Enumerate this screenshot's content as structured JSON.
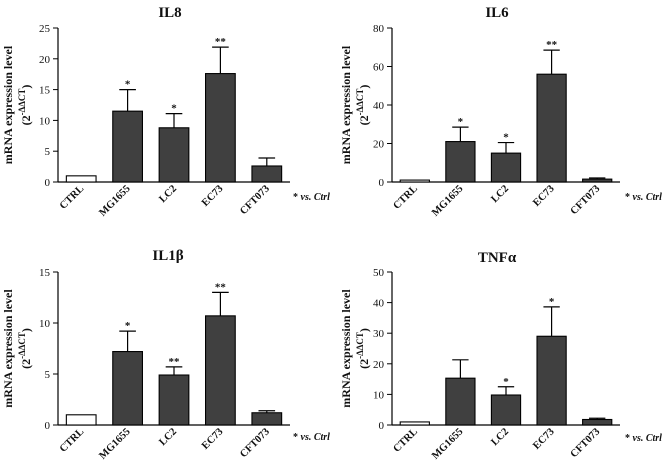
{
  "chart_data": [
    {
      "type": "bar",
      "title": "IL8",
      "categories": [
        "CTRL",
        "MG1655",
        "LC2",
        "EC73",
        "CFT073"
      ],
      "values": [
        1.0,
        11.5,
        8.8,
        17.6,
        2.6
      ],
      "errors": [
        0,
        3.5,
        2.3,
        4.3,
        1.3
      ],
      "significance": [
        "",
        "*",
        "*",
        "**",
        ""
      ],
      "ylim": [
        0,
        25
      ],
      "yticks": [
        0,
        5,
        10,
        15,
        20,
        25
      ],
      "ylabel": "mRNA expression level",
      "ylabel2": "(2",
      "ylabel_sup": "-ΔΔCT",
      "ylabel_close": ")",
      "note_star": "*",
      "note_text": "vs. Ctrl"
    },
    {
      "type": "bar",
      "title": "IL6",
      "categories": [
        "CTRL",
        "MG1655",
        "LC2",
        "EC73",
        "CFT073"
      ],
      "values": [
        1.0,
        21.0,
        15.0,
        56.0,
        1.5
      ],
      "errors": [
        0,
        7.5,
        5.5,
        12.5,
        0.6
      ],
      "significance": [
        "",
        "*",
        "*",
        "**",
        ""
      ],
      "ylim": [
        0,
        80
      ],
      "yticks": [
        0,
        20,
        40,
        60,
        80
      ],
      "ylabel": "mRNA expression level",
      "ylabel2": "(2",
      "ylabel_sup": "-ΔΔCT",
      "ylabel_close": ")",
      "note_star": "*",
      "note_text": "vs. Ctrl"
    },
    {
      "type": "bar",
      "title": "IL1β",
      "categories": [
        "CTRL",
        "MG1655",
        "LC2",
        "EC73",
        "CFT073"
      ],
      "values": [
        1.0,
        7.2,
        4.9,
        10.7,
        1.2
      ],
      "errors": [
        0,
        2.0,
        0.8,
        2.3,
        0.2
      ],
      "significance": [
        "",
        "*",
        "**",
        "**",
        ""
      ],
      "ylim": [
        0,
        15
      ],
      "yticks": [
        0,
        5,
        10,
        15
      ],
      "ylabel": "mRNA expression level",
      "ylabel2": "(2",
      "ylabel_sup": "-ΔΔCT",
      "ylabel_close": ")",
      "note_star": "*",
      "note_text": "vs. Ctrl"
    },
    {
      "type": "bar",
      "title": "TNFα",
      "categories": [
        "CTRL",
        "MG1655",
        "LC2",
        "EC73",
        "CFT073"
      ],
      "values": [
        1.0,
        15.3,
        9.8,
        29.0,
        1.8
      ],
      "errors": [
        0,
        6.0,
        2.7,
        9.6,
        0.4
      ],
      "significance": [
        "",
        "",
        "*",
        "*",
        ""
      ],
      "ylim": [
        0,
        50
      ],
      "yticks": [
        0,
        10,
        20,
        30,
        40,
        50
      ],
      "ylabel": "mRNA expression level",
      "ylabel2": "(2",
      "ylabel_sup": "-ΔΔCT",
      "ylabel_close": ")",
      "note_star": "*",
      "note_text": "vs. Ctrl"
    }
  ]
}
